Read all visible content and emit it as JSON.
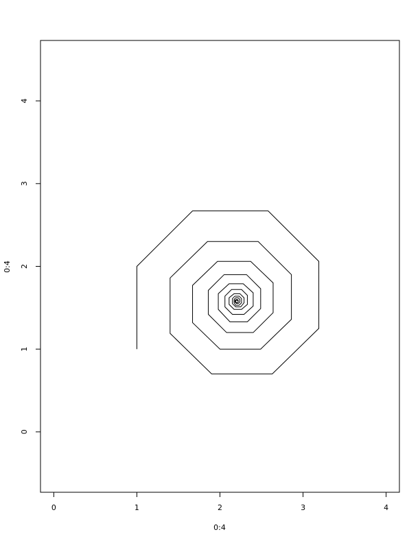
{
  "chart_data": {
    "type": "line",
    "xlabel": "0:4",
    "ylabel": "0:4",
    "xlim": [
      -0.16,
      4.16
    ],
    "ylim": [
      -0.73,
      4.73
    ],
    "x_ticks": [
      "0",
      "1",
      "2",
      "3",
      "4"
    ],
    "y_ticks": [
      "0",
      "1",
      "2",
      "3",
      "4"
    ],
    "grid": false,
    "line_color": "#000000",
    "series": [
      {
        "points": [
          [
            1.0,
            1.0
          ],
          [
            1.0,
            2.0
          ],
          [
            1.67,
            2.67
          ],
          [
            2.58,
            2.67
          ],
          [
            3.19,
            2.06
          ],
          [
            3.19,
            1.25
          ],
          [
            2.63,
            0.7
          ],
          [
            1.9,
            0.7
          ],
          [
            1.4,
            1.19
          ],
          [
            1.4,
            1.86
          ],
          [
            1.85,
            2.3
          ],
          [
            2.46,
            2.3
          ],
          [
            2.86,
            1.9
          ],
          [
            2.86,
            1.36
          ],
          [
            2.49,
            1.0
          ],
          [
            2.0,
            1.0
          ],
          [
            1.67,
            1.32
          ],
          [
            1.67,
            1.77
          ],
          [
            1.97,
            2.06
          ],
          [
            2.37,
            2.06
          ],
          [
            2.64,
            1.8
          ],
          [
            2.64,
            1.44
          ],
          [
            2.4,
            1.2
          ],
          [
            2.08,
            1.2
          ],
          [
            1.86,
            1.42
          ],
          [
            1.86,
            1.71
          ],
          [
            2.05,
            1.9
          ],
          [
            2.32,
            1.9
          ],
          [
            2.49,
            1.73
          ],
          [
            2.49,
            1.49
          ],
          [
            2.33,
            1.33
          ],
          [
            2.12,
            1.33
          ],
          [
            1.98,
            1.48
          ],
          [
            1.98,
            1.67
          ],
          [
            2.11,
            1.79
          ],
          [
            2.28,
            1.79
          ],
          [
            2.4,
            1.68
          ],
          [
            2.4,
            1.52
          ],
          [
            2.29,
            1.42
          ],
          [
            2.15,
            1.42
          ],
          [
            2.06,
            1.51
          ],
          [
            2.06,
            1.64
          ],
          [
            2.14,
            1.72
          ],
          [
            2.26,
            1.72
          ],
          [
            2.33,
            1.65
          ],
          [
            2.33,
            1.54
          ],
          [
            2.26,
            1.48
          ],
          [
            2.17,
            1.48
          ],
          [
            2.11,
            1.54
          ],
          [
            2.11,
            1.62
          ],
          [
            2.17,
            1.67
          ],
          [
            2.24,
            1.67
          ],
          [
            2.29,
            1.62
          ],
          [
            2.29,
            1.56
          ],
          [
            2.25,
            1.51
          ],
          [
            2.19,
            1.51
          ],
          [
            2.15,
            1.55
          ],
          [
            2.15,
            1.61
          ],
          [
            2.18,
            1.64
          ],
          [
            2.23,
            1.64
          ],
          [
            2.26,
            1.61
          ],
          [
            2.26,
            1.56
          ],
          [
            2.23,
            1.53
          ],
          [
            2.19,
            1.53
          ],
          [
            2.17,
            1.56
          ],
          [
            2.17,
            1.6
          ],
          [
            2.19,
            1.62
          ],
          [
            2.22,
            1.62
          ],
          [
            2.24,
            1.6
          ],
          [
            2.24,
            1.57
          ],
          [
            2.22,
            1.55
          ],
          [
            2.2,
            1.55
          ],
          [
            2.18,
            1.57
          ],
          [
            2.18,
            1.59
          ],
          [
            2.2,
            1.6
          ],
          [
            2.21,
            1.6
          ],
          [
            2.22,
            1.59
          ],
          [
            2.22,
            1.57
          ],
          [
            2.21,
            1.56
          ],
          [
            2.2,
            1.56
          ],
          [
            2.19,
            1.57
          ],
          [
            2.19,
            1.59
          ],
          [
            2.2,
            1.59
          ],
          [
            2.21,
            1.59
          ],
          [
            2.21,
            1.58
          ]
        ]
      }
    ]
  }
}
